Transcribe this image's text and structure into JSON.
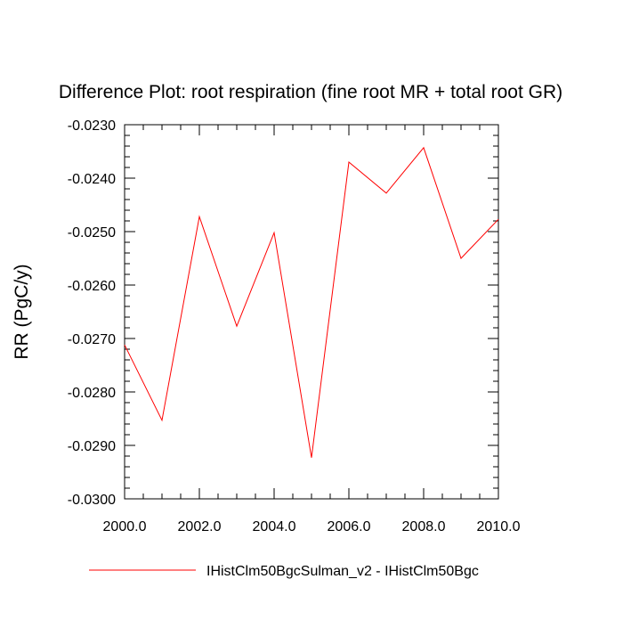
{
  "chart_data": {
    "type": "line",
    "title": "Difference Plot: root respiration (fine root MR + total root GR)",
    "xlabel": "",
    "ylabel": "RR  (PgC/y)",
    "xlim": [
      2000,
      2010
    ],
    "ylim": [
      -0.03,
      -0.023
    ],
    "x_ticks": [
      2000,
      2002,
      2004,
      2006,
      2008,
      2010
    ],
    "x_tick_labels": [
      "2000.0",
      "2002.0",
      "2004.0",
      "2006.0",
      "2008.0",
      "2010.0"
    ],
    "y_ticks": [
      -0.023,
      -0.024,
      -0.025,
      -0.026,
      -0.027,
      -0.028,
      -0.029,
      -0.03
    ],
    "y_tick_labels": [
      "-0.0230",
      "-0.0240",
      "-0.0250",
      "-0.0260",
      "-0.0270",
      "-0.0280",
      "-0.0290",
      "-0.0300"
    ],
    "grid": false,
    "legend_position": "bottom",
    "series": [
      {
        "name": "IHistClm50BgcSulman_v2 - IHistClm50Bgc",
        "color": "#ff0000",
        "x": [
          2000,
          2001,
          2002,
          2003,
          2004,
          2005,
          2006,
          2007,
          2008,
          2009,
          2010
        ],
        "values": [
          -0.02712,
          -0.02853,
          -0.02472,
          -0.02677,
          -0.02502,
          -0.02923,
          -0.0237,
          -0.02428,
          -0.02343,
          -0.0255,
          -0.02477
        ]
      }
    ]
  }
}
